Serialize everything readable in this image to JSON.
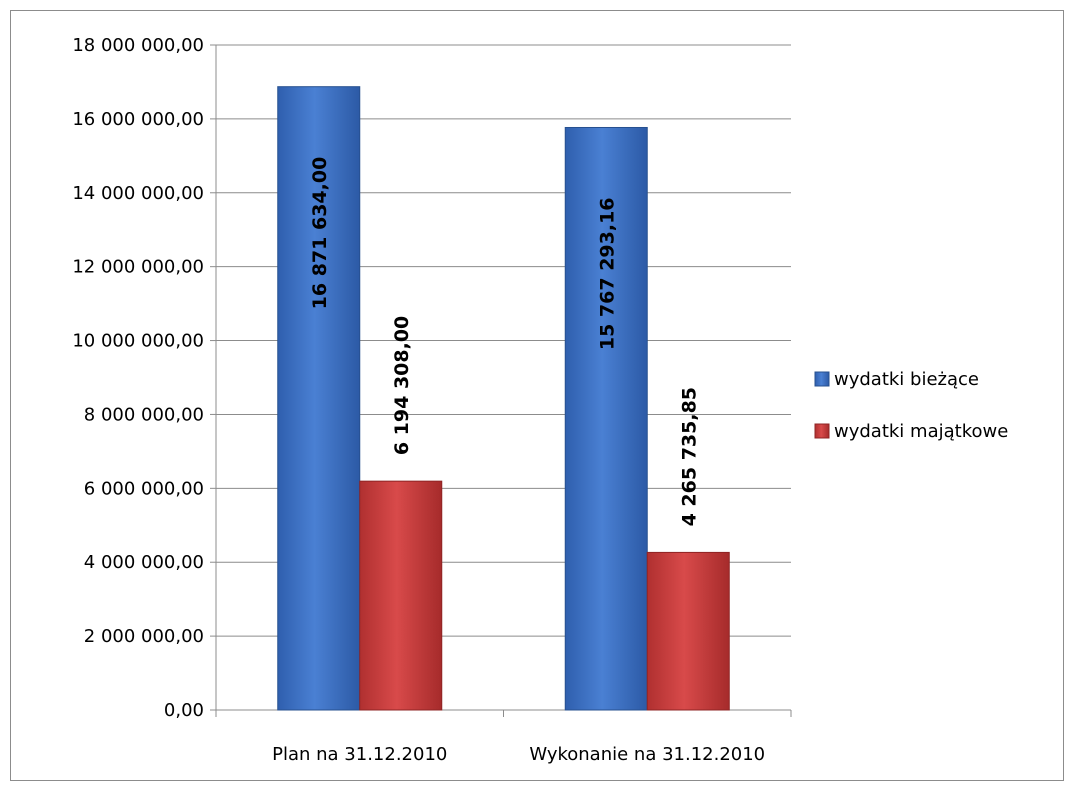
{
  "chart_data": {
    "type": "bar",
    "title": "",
    "xlabel": "",
    "ylabel": "",
    "ylim": [
      0,
      18000000
    ],
    "y_ticks": [
      0,
      2000000,
      4000000,
      6000000,
      8000000,
      10000000,
      12000000,
      14000000,
      16000000,
      18000000
    ],
    "y_tick_labels": [
      "0,00",
      "2 000 000,00",
      "4 000 000,00",
      "6 000 000,00",
      "8 000 000,00",
      "10 000 000,00",
      "12 000 000,00",
      "14 000 000,00",
      "16 000 000,00",
      "18 000 000,00"
    ],
    "grid": true,
    "legend_position": "right",
    "categories": [
      "Plan na 31.12.2010",
      "Wykonanie na 31.12.2010"
    ],
    "series": [
      {
        "name": "wydatki bieżące",
        "color": "#3c6fc2",
        "values": [
          16871634.0,
          15767293.16
        ],
        "data_labels": [
          "16 871 634,00",
          "15 767 293,16"
        ]
      },
      {
        "name": "wydatki majątkowe",
        "color": "#c43b3b",
        "values": [
          6194308.0,
          4265735.85
        ],
        "data_labels": [
          "6 194 308,00",
          "4 265 735,85"
        ]
      }
    ]
  }
}
